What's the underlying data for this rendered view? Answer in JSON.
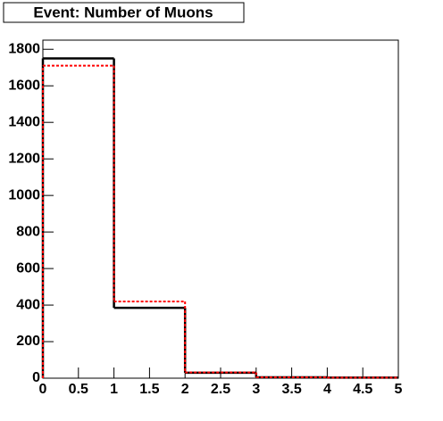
{
  "chart_data": {
    "type": "histogram",
    "title": "Event: Number of Muons",
    "bins": [
      0,
      1,
      2,
      3,
      4,
      5
    ],
    "series": [
      {
        "color": "#000000",
        "values": [
          1750,
          385,
          30,
          5,
          3
        ]
      },
      {
        "color": "#ff0000",
        "values": [
          1710,
          420,
          32,
          5,
          3
        ]
      }
    ],
    "xlim": [
      0,
      5
    ],
    "xticks": [
      0,
      0.5,
      1,
      1.5,
      2,
      2.5,
      3,
      3.5,
      4,
      4.5,
      5
    ],
    "ylim": [
      0,
      1850
    ],
    "yticks": [
      0,
      200,
      400,
      600,
      800,
      1000,
      1200,
      1400,
      1600,
      1800
    ]
  }
}
